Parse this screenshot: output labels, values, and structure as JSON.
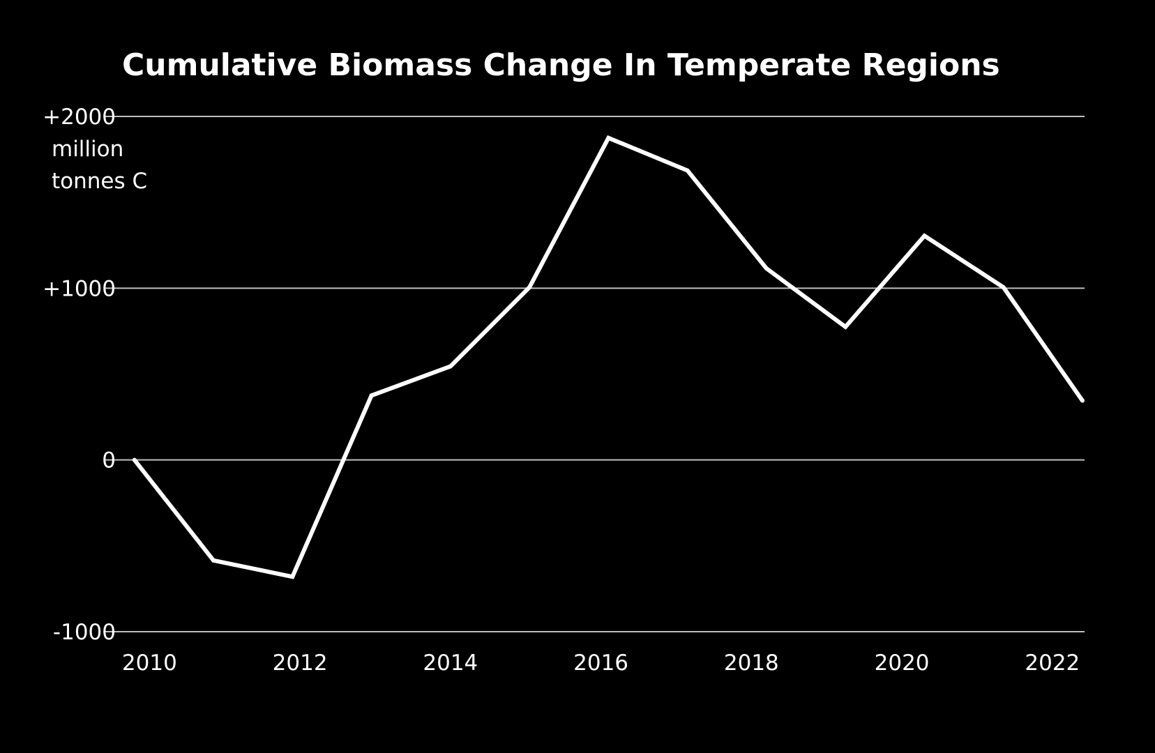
{
  "chart_data": {
    "type": "line",
    "title": "Cumulative Biomass Change In Temperate Regions",
    "y_unit_lines": [
      "million",
      "tonnes C"
    ],
    "ylim": [
      -1000,
      2000
    ],
    "xlim": [
      2009.7,
      2022.4
    ],
    "y_ticks": [
      {
        "value": 2000,
        "label": "+2000"
      },
      {
        "value": 1000,
        "label": "+1000"
      },
      {
        "value": 0,
        "label": "0"
      },
      {
        "value": -1000,
        "label": "-1000"
      }
    ],
    "x_ticks": [
      {
        "value": 2010,
        "label": "2010"
      },
      {
        "value": 2012,
        "label": "2012"
      },
      {
        "value": 2014,
        "label": "2014"
      },
      {
        "value": 2016,
        "label": "2016"
      },
      {
        "value": 2018,
        "label": "2018"
      },
      {
        "value": 2020,
        "label": "2020"
      },
      {
        "value": 2022,
        "label": "2022"
      }
    ],
    "grid": true,
    "series": [
      {
        "x": [
          2009.8,
          2010.85,
          2011.9,
          2012.95,
          2014.0,
          2015.05,
          2016.1,
          2017.15,
          2018.2,
          2019.25,
          2020.3,
          2021.35,
          2022.4
        ],
        "y": [
          0,
          -585,
          -680,
          375,
          545,
          1005,
          1875,
          1685,
          1115,
          775,
          1305,
          1005,
          345
        ]
      }
    ],
    "colors": {
      "background": "#000000",
      "line": "#ffffff",
      "grid": "#bfbfbf",
      "text": "#ffffff"
    }
  }
}
